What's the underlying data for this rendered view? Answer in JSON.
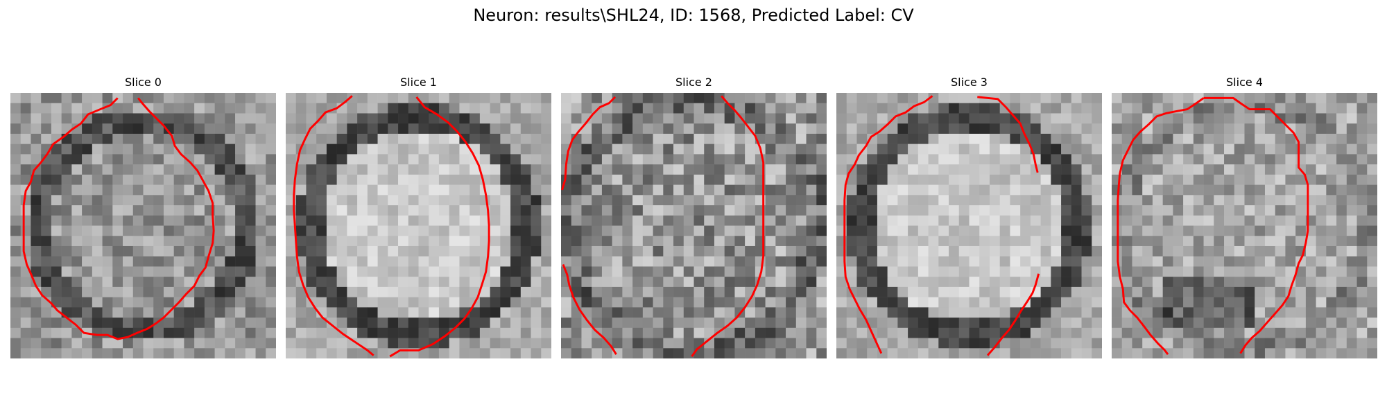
{
  "figure": {
    "title": "Neuron: results\\SHL24, ID: 1568, Predicted Label: CV"
  },
  "style": {
    "contour_color": "#ff0000",
    "colormap": "grayscale"
  },
  "slices": [
    {
      "label": "Slice 0",
      "contour": [
        [
          10.5,
          0.5
        ],
        [
          9.8,
          1.2
        ],
        [
          8.8,
          1.6
        ],
        [
          7.6,
          2.1
        ],
        [
          6.9,
          3.0
        ],
        [
          6.0,
          3.6
        ],
        [
          5.2,
          4.3
        ],
        [
          4.2,
          5.0
        ],
        [
          3.6,
          6.0
        ],
        [
          3.0,
          6.8
        ],
        [
          2.3,
          7.6
        ],
        [
          2.0,
          8.7
        ],
        [
          1.5,
          9.6
        ],
        [
          1.3,
          11.0
        ],
        [
          1.3,
          12.5
        ],
        [
          1.3,
          14.0
        ],
        [
          1.3,
          15.5
        ],
        [
          1.6,
          16.8
        ],
        [
          2.0,
          17.7
        ],
        [
          2.5,
          18.9
        ],
        [
          3.1,
          19.8
        ],
        [
          4.0,
          20.6
        ],
        [
          4.6,
          21.3
        ],
        [
          5.5,
          22.0
        ],
        [
          6.4,
          22.7
        ],
        [
          7.2,
          23.5
        ],
        [
          8.5,
          23.7
        ],
        [
          9.5,
          23.7
        ],
        [
          10.5,
          24.1
        ],
        [
          11.5,
          23.9
        ],
        [
          12.4,
          23.5
        ],
        [
          13.4,
          23.1
        ],
        [
          14.2,
          22.6
        ],
        [
          15.0,
          22.0
        ],
        [
          15.7,
          21.3
        ],
        [
          16.5,
          20.5
        ],
        [
          17.2,
          19.7
        ],
        [
          18.0,
          18.9
        ],
        [
          18.5,
          17.9
        ],
        [
          19.1,
          17.1
        ],
        [
          19.4,
          16.0
        ],
        [
          19.8,
          14.7
        ],
        [
          19.9,
          13.5
        ],
        [
          19.8,
          12.0
        ],
        [
          19.8,
          10.8
        ],
        [
          19.4,
          9.6
        ],
        [
          18.8,
          8.5
        ],
        [
          18.3,
          7.6
        ],
        [
          17.6,
          6.8
        ],
        [
          16.7,
          6.0
        ],
        [
          16.1,
          5.2
        ],
        [
          15.8,
          4.2
        ],
        [
          15.0,
          3.2
        ],
        [
          14.3,
          2.5
        ],
        [
          13.6,
          1.8
        ],
        [
          12.9,
          1.0
        ],
        [
          12.5,
          0.5
        ]
      ],
      "intensity_seed": 11,
      "intensity_profile": "dark-rim"
    },
    {
      "label": "Slice 1",
      "contour": [
        [
          6.5,
          0.3
        ],
        [
          5.8,
          0.9
        ],
        [
          5.0,
          1.5
        ],
        [
          3.9,
          1.9
        ],
        [
          3.2,
          2.7
        ],
        [
          2.4,
          3.5
        ],
        [
          1.9,
          4.5
        ],
        [
          1.4,
          5.6
        ],
        [
          1.1,
          7.0
        ],
        [
          0.9,
          8.5
        ],
        [
          0.8,
          10.0
        ],
        [
          0.8,
          11.5
        ],
        [
          0.9,
          13.0
        ],
        [
          1.0,
          14.5
        ],
        [
          1.1,
          16.0
        ],
        [
          1.3,
          17.5
        ],
        [
          1.7,
          18.8
        ],
        [
          2.2,
          20.0
        ],
        [
          2.9,
          21.1
        ],
        [
          3.6,
          22.0
        ],
        [
          4.6,
          22.8
        ],
        [
          5.6,
          23.6
        ],
        [
          6.8,
          24.4
        ],
        [
          8.0,
          25.2
        ],
        [
          8.6,
          25.7
        ]
      ],
      "contour_b": [
        [
          10.2,
          25.8
        ],
        [
          11.2,
          25.2
        ],
        [
          13.0,
          25.2
        ],
        [
          14.4,
          24.6
        ],
        [
          15.6,
          23.8
        ],
        [
          16.6,
          23.0
        ],
        [
          17.5,
          22.1
        ],
        [
          18.2,
          21.1
        ],
        [
          18.8,
          20.0
        ],
        [
          19.2,
          18.8
        ],
        [
          19.6,
          17.5
        ],
        [
          19.8,
          16.0
        ],
        [
          19.9,
          14.5
        ],
        [
          19.9,
          13.0
        ],
        [
          19.8,
          11.5
        ],
        [
          19.6,
          10.0
        ],
        [
          19.3,
          8.5
        ],
        [
          18.9,
          7.1
        ],
        [
          18.3,
          5.9
        ],
        [
          17.6,
          4.8
        ],
        [
          16.8,
          3.8
        ],
        [
          15.9,
          2.9
        ],
        [
          14.8,
          2.1
        ],
        [
          13.6,
          1.4
        ],
        [
          12.8,
          0.4
        ]
      ],
      "intensity_seed": 23,
      "intensity_profile": "bright-disc"
    },
    {
      "label": "Slice 2",
      "contour": [
        [
          5.3,
          0.4
        ],
        [
          4.7,
          1.0
        ],
        [
          3.8,
          1.4
        ],
        [
          3.1,
          2.1
        ],
        [
          2.4,
          3.0
        ],
        [
          1.7,
          3.8
        ],
        [
          1.1,
          4.6
        ],
        [
          0.7,
          5.7
        ],
        [
          0.5,
          7.0
        ],
        [
          0.4,
          8.5
        ],
        [
          0.1,
          9.5
        ]
      ],
      "contour_b": [
        [
          0.2,
          16.8
        ],
        [
          0.6,
          17.8
        ],
        [
          0.8,
          18.8
        ],
        [
          1.2,
          20.0
        ],
        [
          1.8,
          21.2
        ],
        [
          2.5,
          22.2
        ],
        [
          3.3,
          23.2
        ],
        [
          4.2,
          24.0
        ],
        [
          4.9,
          24.8
        ],
        [
          5.4,
          25.6
        ]
      ],
      "contour_c": [
        [
          15.7,
          0.3
        ],
        [
          16.3,
          1.0
        ],
        [
          17.0,
          1.7
        ],
        [
          17.6,
          2.4
        ],
        [
          18.3,
          3.3
        ],
        [
          19.0,
          4.2
        ],
        [
          19.5,
          5.4
        ],
        [
          19.8,
          6.8
        ],
        [
          19.8,
          8.5
        ],
        [
          19.8,
          10.0
        ],
        [
          19.8,
          11.5
        ],
        [
          19.8,
          13.0
        ],
        [
          19.8,
          14.5
        ],
        [
          19.8,
          16.0
        ],
        [
          19.6,
          17.5
        ],
        [
          19.2,
          18.8
        ],
        [
          18.7,
          19.9
        ],
        [
          18.0,
          21.0
        ],
        [
          17.2,
          22.0
        ],
        [
          16.3,
          22.8
        ],
        [
          15.3,
          23.5
        ],
        [
          14.3,
          24.3
        ],
        [
          13.3,
          25.1
        ],
        [
          12.8,
          25.8
        ]
      ],
      "intensity_seed": 37,
      "intensity_profile": "noisy"
    },
    {
      "label": "Slice 3",
      "contour": [
        [
          9.4,
          0.3
        ],
        [
          8.6,
          0.9
        ],
        [
          7.6,
          1.3
        ],
        [
          6.8,
          1.9
        ],
        [
          5.8,
          2.3
        ],
        [
          5.0,
          3.1
        ],
        [
          4.2,
          3.8
        ],
        [
          3.4,
          4.3
        ],
        [
          2.9,
          5.2
        ],
        [
          2.2,
          6.1
        ],
        [
          1.8,
          7.0
        ],
        [
          1.2,
          7.9
        ],
        [
          0.9,
          9.0
        ],
        [
          0.8,
          10.5
        ],
        [
          0.8,
          12.0
        ],
        [
          0.8,
          13.5
        ],
        [
          0.8,
          15.0
        ],
        [
          0.8,
          16.5
        ],
        [
          0.9,
          18.0
        ],
        [
          1.3,
          19.2
        ],
        [
          1.8,
          20.2
        ],
        [
          2.3,
          21.2
        ],
        [
          2.9,
          22.2
        ],
        [
          3.4,
          23.3
        ],
        [
          3.9,
          24.4
        ],
        [
          4.4,
          25.5
        ]
      ],
      "contour_b": [
        [
          13.8,
          0.4
        ],
        [
          15.8,
          0.6
        ],
        [
          16.6,
          1.4
        ],
        [
          17.3,
          2.2
        ],
        [
          18.0,
          3.0
        ],
        [
          18.4,
          4.0
        ],
        [
          18.9,
          5.0
        ],
        [
          19.3,
          6.0
        ],
        [
          19.5,
          7.0
        ],
        [
          19.7,
          7.8
        ]
      ],
      "contour_c": [
        [
          19.8,
          17.7
        ],
        [
          19.5,
          18.8
        ],
        [
          19.2,
          19.6
        ],
        [
          18.7,
          20.4
        ],
        [
          18.1,
          21.3
        ],
        [
          17.5,
          22.3
        ],
        [
          16.9,
          23.2
        ],
        [
          16.2,
          24.0
        ],
        [
          15.5,
          24.9
        ],
        [
          14.8,
          25.7
        ]
      ],
      "intensity_seed": 51,
      "intensity_profile": "bright-disc"
    },
    {
      "label": "Slice 4",
      "contour": [
        [
          9.0,
          0.5
        ],
        [
          11.9,
          0.5
        ],
        [
          12.6,
          1.0
        ],
        [
          13.5,
          1.6
        ],
        [
          14.6,
          1.6
        ],
        [
          15.5,
          1.6
        ],
        [
          16.3,
          2.4
        ],
        [
          17.1,
          3.2
        ],
        [
          17.8,
          3.9
        ],
        [
          18.3,
          4.8
        ],
        [
          18.3,
          6.0
        ],
        [
          18.3,
          7.3
        ],
        [
          18.9,
          8.0
        ],
        [
          19.2,
          9.0
        ],
        [
          19.2,
          10.5
        ],
        [
          19.2,
          12.0
        ],
        [
          19.2,
          13.5
        ],
        [
          19.0,
          14.7
        ],
        [
          18.7,
          15.9
        ],
        [
          18.3,
          16.7
        ],
        [
          18.0,
          17.8
        ],
        [
          17.6,
          18.9
        ],
        [
          17.3,
          19.9
        ],
        [
          16.7,
          20.8
        ],
        [
          16.0,
          21.6
        ],
        [
          15.2,
          22.5
        ],
        [
          14.5,
          23.3
        ],
        [
          13.7,
          24.0
        ],
        [
          13.1,
          24.7
        ],
        [
          12.6,
          25.5
        ]
      ],
      "contour_b": [
        [
          9.0,
          0.5
        ],
        [
          8.3,
          1.0
        ],
        [
          7.4,
          1.6
        ],
        [
          6.3,
          1.8
        ],
        [
          5.3,
          2.0
        ],
        [
          4.4,
          2.3
        ],
        [
          3.6,
          3.1
        ],
        [
          2.8,
          3.8
        ],
        [
          2.1,
          4.6
        ],
        [
          1.6,
          5.6
        ],
        [
          1.1,
          6.6
        ],
        [
          0.8,
          7.9
        ],
        [
          0.7,
          9.0
        ],
        [
          0.6,
          10.5
        ],
        [
          0.6,
          12.0
        ],
        [
          0.6,
          13.5
        ],
        [
          0.6,
          15.0
        ],
        [
          0.6,
          16.5
        ],
        [
          0.8,
          18.0
        ],
        [
          1.1,
          19.2
        ],
        [
          1.2,
          20.5
        ],
        [
          1.8,
          21.3
        ],
        [
          2.5,
          22.0
        ],
        [
          3.2,
          22.9
        ],
        [
          3.8,
          23.7
        ],
        [
          4.5,
          24.5
        ],
        [
          5.2,
          25.2
        ],
        [
          5.5,
          25.6
        ]
      ],
      "intensity_seed": 67,
      "intensity_profile": "dark-bottom"
    }
  ]
}
